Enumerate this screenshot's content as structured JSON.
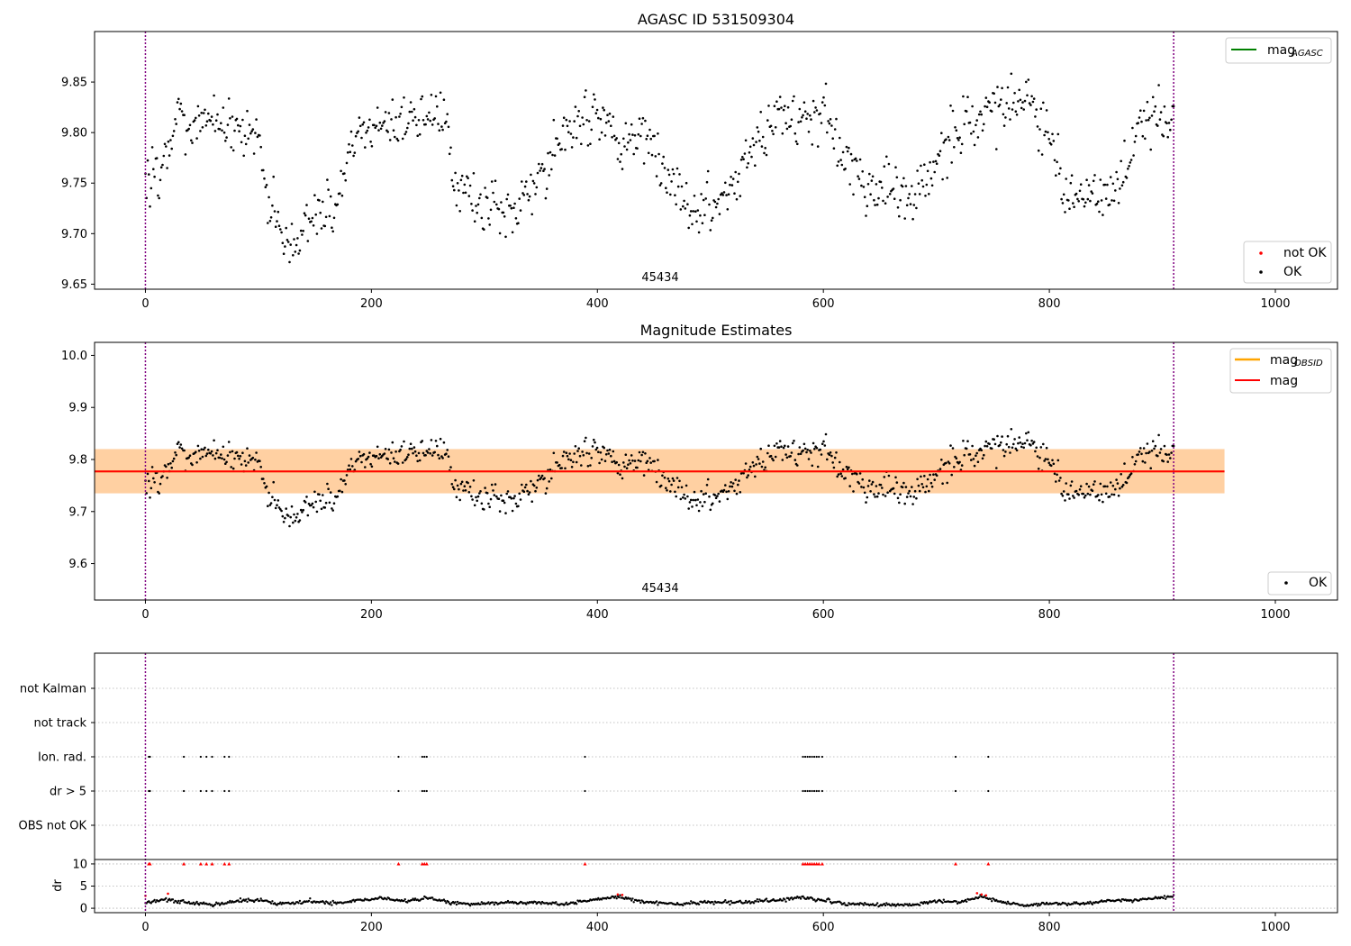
{
  "chart_data": [
    {
      "type": "scatter",
      "title": "AGASC ID 531509304",
      "xlim": [
        -45,
        1055
      ],
      "ylim": [
        9.645,
        9.9
      ],
      "xticks": [
        0,
        200,
        400,
        600,
        800,
        1000
      ],
      "yticks": [
        9.65,
        9.7,
        9.75,
        9.8,
        9.85
      ],
      "grid": false,
      "obsid_label": "45434",
      "obsid_label_x": 455,
      "obs_boundaries": [
        0,
        910
      ],
      "legend_lines": {
        "placement": "upper right",
        "entries": [
          {
            "name": "mag",
            "subscript": "AGASC",
            "color": "#008000"
          }
        ]
      },
      "legend_points": {
        "placement": "lower right",
        "entries": [
          {
            "name": "not OK",
            "color": "#ff0000"
          },
          {
            "name": "OK",
            "color": "#000000"
          }
        ]
      },
      "series": [
        {
          "name": "OK",
          "color": "#000000",
          "marker": "dot",
          "anchors": [
            [
              0,
              9.762
            ],
            [
              18,
              9.765
            ],
            [
              28,
              9.815
            ],
            [
              100,
              9.805
            ],
            [
              105,
              9.742
            ],
            [
              118,
              9.705
            ],
            [
              130,
              9.692
            ],
            [
              150,
              9.718
            ],
            [
              170,
              9.725
            ],
            [
              180,
              9.79
            ],
            [
              200,
              9.8
            ],
            [
              225,
              9.815
            ],
            [
              265,
              9.82
            ],
            [
              272,
              9.752
            ],
            [
              290,
              9.74
            ],
            [
              300,
              9.722
            ],
            [
              330,
              9.722
            ],
            [
              355,
              9.76
            ],
            [
              370,
              9.8
            ],
            [
              400,
              9.818
            ],
            [
              420,
              9.79
            ],
            [
              445,
              9.795
            ],
            [
              460,
              9.75
            ],
            [
              480,
              9.728
            ],
            [
              510,
              9.73
            ],
            [
              540,
              9.785
            ],
            [
              560,
              9.82
            ],
            [
              590,
              9.812
            ],
            [
              600,
              9.822
            ],
            [
              610,
              9.79
            ],
            [
              640,
              9.745
            ],
            [
              680,
              9.738
            ],
            [
              700,
              9.775
            ],
            [
              740,
              9.822
            ],
            [
              770,
              9.832
            ],
            [
              780,
              9.84
            ],
            [
              800,
              9.79
            ],
            [
              815,
              9.738
            ],
            [
              850,
              9.735
            ],
            [
              870,
              9.76
            ],
            [
              880,
              9.815
            ],
            [
              910,
              9.808
            ]
          ],
          "noise": 0.013,
          "n_points": 900
        }
      ]
    },
    {
      "type": "scatter",
      "title": "Magnitude Estimates",
      "xlim": [
        -45,
        1055
      ],
      "ylim": [
        9.53,
        10.025
      ],
      "xticks": [
        0,
        200,
        400,
        600,
        800,
        1000
      ],
      "yticks": [
        9.6,
        9.7,
        9.8,
        9.9,
        10.0
      ],
      "grid": false,
      "obsid_label": "45434",
      "obsid_label_x": 455,
      "obs_boundaries": [
        0,
        910
      ],
      "mag_obsid": {
        "value": 9.777,
        "band_low": 9.735,
        "band_high": 9.82,
        "x_range": [
          -45,
          955
        ],
        "line_color": "#ffa500",
        "band_color": "#ffa500"
      },
      "mag": {
        "value": 9.777,
        "band_low": 9.735,
        "band_high": 9.82,
        "x_range": [
          -45,
          955
        ],
        "line_color": "#ff0000",
        "band_color": "#ffc0cb"
      },
      "legend_lines": {
        "placement": "upper right",
        "entries": [
          {
            "name": "mag",
            "subscript": "OBSID",
            "color": "#ffa500"
          },
          {
            "name": "mag",
            "color": "#ff0000"
          }
        ]
      },
      "legend_points": {
        "placement": "lower right",
        "entries": [
          {
            "name": "OK",
            "color": "#000000"
          }
        ]
      },
      "series": [
        {
          "name": "OK",
          "color": "#000000",
          "marker": "dot",
          "same_as_panel": 0
        }
      ]
    },
    {
      "type": "scatter",
      "title": "",
      "xlim": [
        -45,
        1055
      ],
      "xticks": [
        0,
        200,
        400,
        600,
        800,
        1000
      ],
      "obs_boundaries": [
        0,
        910
      ],
      "flag_rows": [
        "not Kalman",
        "not track",
        "Ion. rad.",
        "dr > 5",
        "OBS not OK"
      ],
      "flag_grid": "dotted",
      "flags": {
        "Ion. rad.": [
          3,
          4,
          34,
          49,
          54,
          59,
          70,
          74,
          224,
          245,
          247,
          249,
          389,
          582,
          584,
          586,
          588,
          590,
          592,
          594,
          596,
          599,
          717,
          746
        ],
        "dr > 5": [
          3,
          4,
          34,
          49,
          54,
          59,
          70,
          74,
          224,
          245,
          247,
          249,
          389,
          582,
          584,
          586,
          588,
          590,
          592,
          594,
          596,
          599,
          717,
          746
        ]
      },
      "dr_panel": {
        "ylabel": "dr",
        "ylim": [
          -1,
          11
        ],
        "yticks": [
          0,
          5,
          10
        ],
        "clip_value": 10,
        "clipped_x": [
          3,
          4,
          34,
          49,
          54,
          59,
          70,
          74,
          224,
          245,
          247,
          249,
          389,
          582,
          584,
          586,
          588,
          590,
          592,
          594,
          596,
          599,
          717,
          746
        ],
        "red_points": [
          [
            0,
            2.8
          ],
          [
            20,
            3.3
          ],
          [
            418,
            3.1
          ],
          [
            422,
            3.0
          ],
          [
            736,
            3.4
          ],
          [
            740,
            3.1
          ],
          [
            744,
            2.9
          ]
        ],
        "anchors": [
          [
            0,
            1.2
          ],
          [
            20,
            2.0
          ],
          [
            40,
            1.3
          ],
          [
            60,
            0.8
          ],
          [
            80,
            1.6
          ],
          [
            100,
            1.9
          ],
          [
            120,
            0.9
          ],
          [
            150,
            1.6
          ],
          [
            165,
            1.0
          ],
          [
            190,
            1.8
          ],
          [
            210,
            2.3
          ],
          [
            230,
            1.4
          ],
          [
            250,
            2.5
          ],
          [
            270,
            1.2
          ],
          [
            290,
            0.9
          ],
          [
            320,
            1.2
          ],
          [
            350,
            1.3
          ],
          [
            370,
            0.8
          ],
          [
            395,
            1.9
          ],
          [
            420,
            2.6
          ],
          [
            440,
            1.5
          ],
          [
            470,
            0.9
          ],
          [
            500,
            1.4
          ],
          [
            530,
            1.3
          ],
          [
            560,
            1.8
          ],
          [
            580,
            2.5
          ],
          [
            600,
            1.8
          ],
          [
            620,
            1.0
          ],
          [
            650,
            0.8
          ],
          [
            680,
            0.7
          ],
          [
            700,
            1.7
          ],
          [
            720,
            1.3
          ],
          [
            740,
            2.6
          ],
          [
            760,
            1.3
          ],
          [
            780,
            0.6
          ],
          [
            800,
            1.1
          ],
          [
            830,
            0.9
          ],
          [
            850,
            1.7
          ],
          [
            880,
            1.9
          ],
          [
            910,
            2.6
          ]
        ],
        "noise": 0.18,
        "n_points": 900
      }
    }
  ]
}
